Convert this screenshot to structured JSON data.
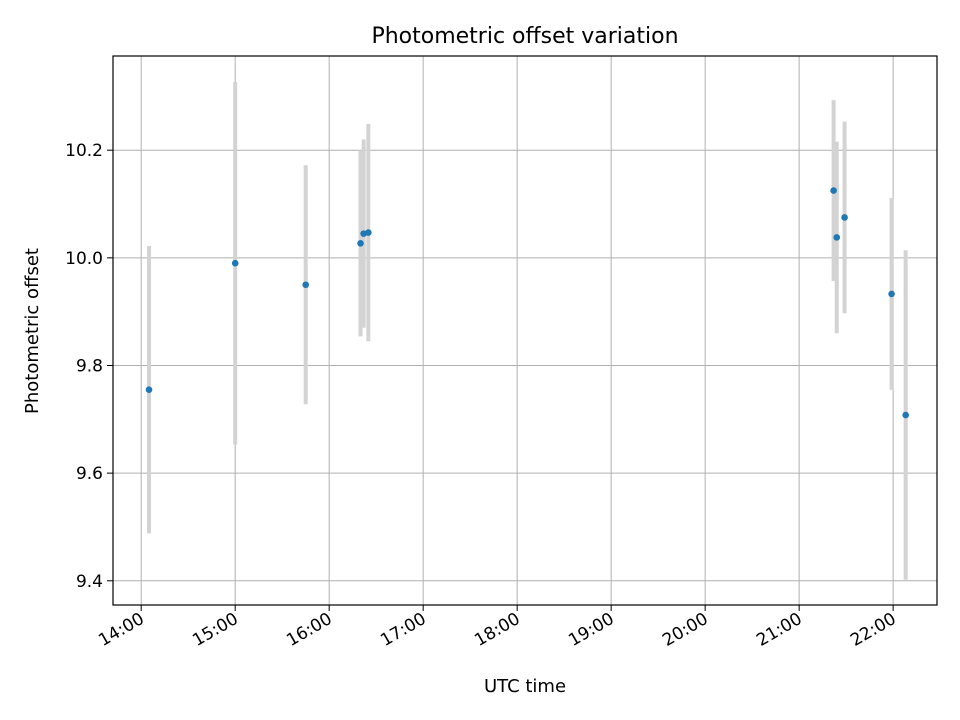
{
  "chart_data": {
    "type": "scatter",
    "title": "Photometric offset variation",
    "xlabel": "UTC time",
    "ylabel": "Photometric offset",
    "x_tick_labels": [
      "14:00",
      "15:00",
      "16:00",
      "17:00",
      "18:00",
      "19:00",
      "20:00",
      "21:00",
      "22:00"
    ],
    "y_ticks": [
      9.4,
      9.6,
      9.8,
      10.0,
      10.2
    ],
    "y_tick_labels": [
      "9.4",
      "9.6",
      "9.8",
      "10.0",
      "10.2"
    ],
    "xlim": [
      "13:42",
      "22:28"
    ],
    "ylim": [
      9.355,
      10.375
    ],
    "grid": true,
    "colors": {
      "point": "#1f77b4",
      "errorbar": "#d3d3d3",
      "grid": "#b0b0b0"
    },
    "series": [
      {
        "x": [
          "14:05",
          "15:00",
          "15:45",
          "16:20",
          "16:22",
          "16:25",
          "21:22",
          "21:24",
          "21:29",
          "21:59",
          "22:08"
        ],
        "y": [
          9.755,
          9.99,
          9.95,
          10.027,
          10.045,
          10.047,
          10.125,
          10.038,
          10.075,
          9.933,
          9.708
        ],
        "error": [
          0.267,
          0.337,
          0.222,
          0.173,
          0.175,
          0.202,
          0.168,
          0.178,
          0.178,
          0.178,
          0.306
        ]
      }
    ]
  }
}
